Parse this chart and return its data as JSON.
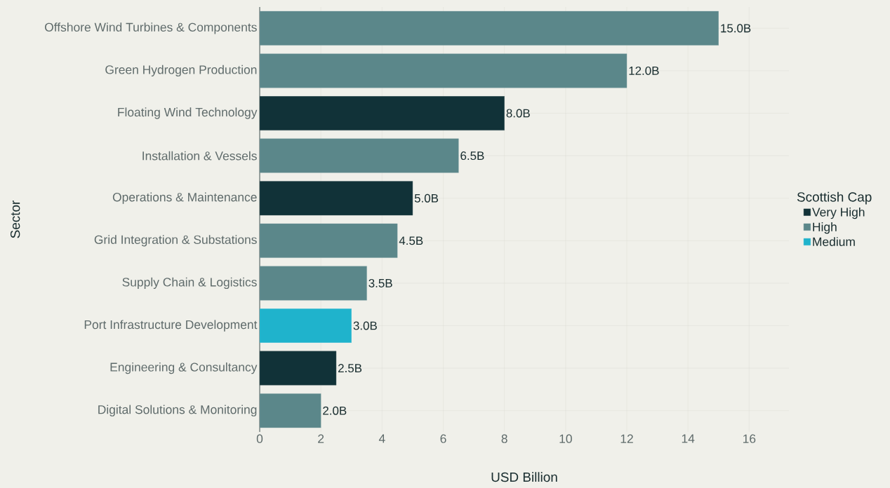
{
  "chart_data": {
    "type": "bar",
    "orientation": "horizontal",
    "xlabel": "USD Billion",
    "ylabel": "Sector",
    "legend_title": "Scottish Cap",
    "categories": [
      "Offshore Wind Turbines & Components",
      "Green Hydrogen Production",
      "Floating Wind Technology",
      "Installation & Vessels",
      "Operations & Maintenance",
      "Grid Integration & Substations",
      "Supply Chain & Logistics",
      "Port Infrastructure Development",
      "Engineering & Consultancy",
      "Digital Solutions & Monitoring"
    ],
    "series": [
      {
        "name": "Very High",
        "color": "#113238",
        "values": [
          null,
          null,
          8.0,
          null,
          5.0,
          null,
          null,
          null,
          2.5,
          null
        ],
        "value_labels": [
          null,
          null,
          "8.0B",
          null,
          "5.0B",
          null,
          null,
          null,
          "2.5B",
          null
        ]
      },
      {
        "name": "High",
        "color": "#5b878a",
        "values": [
          15.0,
          12.0,
          null,
          6.5,
          null,
          4.5,
          3.5,
          null,
          null,
          2.0
        ],
        "value_labels": [
          "15.0B",
          "12.0B",
          null,
          "6.5B",
          null,
          "4.5B",
          "3.5B",
          null,
          null,
          "2.0B"
        ]
      },
      {
        "name": "Medium",
        "color": "#1fb3cc",
        "values": [
          null,
          null,
          null,
          null,
          null,
          null,
          null,
          3.0,
          null,
          null
        ],
        "value_labels": [
          null,
          null,
          null,
          null,
          null,
          null,
          null,
          "3.0B",
          null,
          null
        ]
      }
    ],
    "xlim": [
      0,
      17.3
    ],
    "xticks": [
      0,
      2,
      4,
      6,
      8,
      10,
      12,
      14,
      16
    ],
    "grid": true,
    "legend": "right"
  }
}
